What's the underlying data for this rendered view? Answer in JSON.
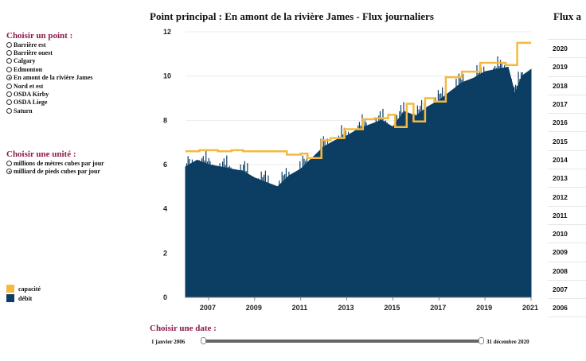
{
  "point_section": {
    "title": "Choisir un point :",
    "options": [
      {
        "label": "Barrière est",
        "checked": false
      },
      {
        "label": "Barrière ouest",
        "checked": false
      },
      {
        "label": "Calgary",
        "checked": false
      },
      {
        "label": "Edmonton",
        "checked": false
      },
      {
        "label": "En amont de la rivière James",
        "checked": true
      },
      {
        "label": "Nord et est",
        "checked": false
      },
      {
        "label": "OSDA Kirby",
        "checked": false
      },
      {
        "label": "OSDA Liege",
        "checked": false
      },
      {
        "label": "Saturn",
        "checked": false
      }
    ]
  },
  "unit_section": {
    "title": "Choisir une unité :",
    "options": [
      {
        "label": "millions de mètres cubes par jour",
        "checked": false
      },
      {
        "label": "milliard de pieds cubes par jour",
        "checked": true
      }
    ]
  },
  "legend": {
    "items": [
      {
        "label": "capacité",
        "color": "#f5b942"
      },
      {
        "label": "débit",
        "color": "#0c3d63"
      }
    ]
  },
  "chart_data": {
    "type": "area",
    "title": "Point principal : En amont de la rivière James - Flux journaliers",
    "xlabel": "",
    "ylabel": "",
    "xlim": [
      2006.0,
      2021.0
    ],
    "ylim": [
      0,
      12
    ],
    "y_ticks": [
      0,
      2,
      4,
      6,
      8,
      10,
      12
    ],
    "x_ticks": [
      2007,
      2009,
      2011,
      2013,
      2015,
      2017,
      2019,
      2021
    ],
    "grid": true,
    "series": [
      {
        "name": "capacité",
        "color": "#f5b942",
        "step_points": [
          [
            2006.0,
            6.6
          ],
          [
            2006.6,
            6.65
          ],
          [
            2007.4,
            6.6
          ],
          [
            2008.0,
            6.65
          ],
          [
            2008.5,
            6.6
          ],
          [
            2009.5,
            6.6
          ],
          [
            2010.4,
            6.45
          ],
          [
            2011.0,
            6.5
          ],
          [
            2011.3,
            6.3
          ],
          [
            2011.9,
            7.1
          ],
          [
            2012.3,
            7.2
          ],
          [
            2012.9,
            7.6
          ],
          [
            2013.3,
            7.6
          ],
          [
            2013.7,
            8.05
          ],
          [
            2014.2,
            8.1
          ],
          [
            2014.8,
            8.25
          ],
          [
            2015.1,
            7.7
          ],
          [
            2015.6,
            8.75
          ],
          [
            2015.9,
            7.95
          ],
          [
            2016.4,
            9.0
          ],
          [
            2016.8,
            8.85
          ],
          [
            2017.3,
            9.95
          ],
          [
            2018.0,
            10.2
          ],
          [
            2018.8,
            10.6
          ],
          [
            2019.9,
            10.5
          ],
          [
            2020.4,
            11.5
          ],
          [
            2021.0,
            11.5
          ]
        ]
      },
      {
        "name": "débit",
        "color": "#0c3d63",
        "points": [
          [
            2006.0,
            5.9
          ],
          [
            2006.5,
            6.2
          ],
          [
            2007.0,
            6.0
          ],
          [
            2007.5,
            5.9
          ],
          [
            2008.0,
            5.8
          ],
          [
            2008.5,
            5.7
          ],
          [
            2009.0,
            5.4
          ],
          [
            2009.5,
            5.2
          ],
          [
            2010.0,
            5.0
          ],
          [
            2010.5,
            5.5
          ],
          [
            2011.0,
            5.8
          ],
          [
            2011.5,
            6.3
          ],
          [
            2012.0,
            6.8
          ],
          [
            2012.5,
            7.1
          ],
          [
            2013.0,
            7.3
          ],
          [
            2013.5,
            7.6
          ],
          [
            2014.0,
            7.8
          ],
          [
            2014.5,
            8.0
          ],
          [
            2015.0,
            7.7
          ],
          [
            2015.5,
            8.4
          ],
          [
            2016.0,
            8.2
          ],
          [
            2016.5,
            8.6
          ],
          [
            2017.0,
            8.9
          ],
          [
            2017.5,
            9.3
          ],
          [
            2018.0,
            9.7
          ],
          [
            2018.5,
            9.9
          ],
          [
            2019.0,
            10.2
          ],
          [
            2019.5,
            10.3
          ],
          [
            2020.0,
            10.4
          ],
          [
            2020.3,
            9.2
          ],
          [
            2020.6,
            10.0
          ],
          [
            2021.0,
            10.3
          ]
        ]
      }
    ]
  },
  "secondary_chart": {
    "title": "Flux a",
    "rows": [
      "2020",
      "2019",
      "2018",
      "2017",
      "2016",
      "2015",
      "2014",
      "2013",
      "2012",
      "2011",
      "2010",
      "2009",
      "2008",
      "2007",
      "2006"
    ]
  },
  "date_section": {
    "title": "Choisir une date :",
    "start_label": "1 janvier 2006",
    "end_label": "31 décembre 2020"
  }
}
